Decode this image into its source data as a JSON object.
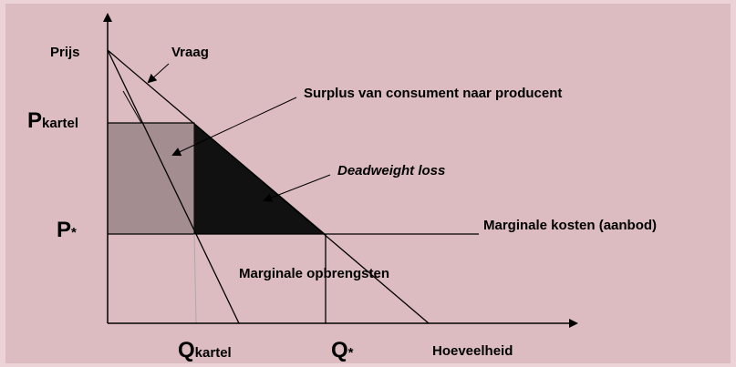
{
  "diagram": {
    "axis_y_label": "Prijs",
    "axis_x_label": "Hoeveelheid",
    "demand_label": "Vraag",
    "surplus_label": "Surplus van consument naar producent",
    "deadweight_label": "Deadweight loss",
    "marginal_cost_label": "Marginale kosten (aanbod)",
    "marginal_revenue_label": "Marginale opbrengsten",
    "p_kartel": {
      "symbol": "P",
      "subscript": "kartel"
    },
    "p_star": {
      "symbol": "P",
      "subscript": "*"
    },
    "q_kartel": {
      "symbol": "Q",
      "subscript": "kartel"
    },
    "q_star": {
      "symbol": "Q",
      "subscript": "*"
    }
  }
}
